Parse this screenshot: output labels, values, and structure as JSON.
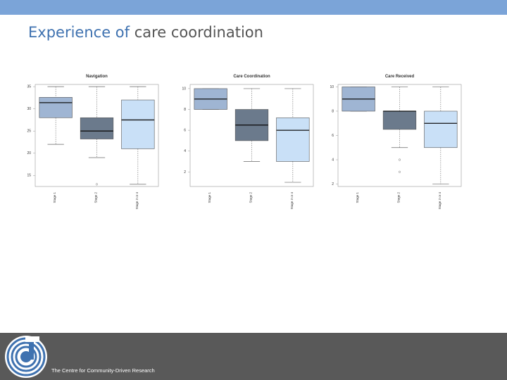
{
  "slide": {
    "title_accent": "Experience of",
    "title_rest": " care coordination",
    "footer_text": "The Centre for Community-Driven Research"
  },
  "colors": {
    "topbar": "#7ba4d8",
    "title_accent": "#3f72b0",
    "title_text": "#555555",
    "footer": "#595959",
    "box_group1": "#9fb5d3",
    "box_group2": "#6b7a8c",
    "box_group3": "#c9e0f7"
  },
  "chart_data": [
    {
      "type": "box",
      "title": "Navigation",
      "categories": [
        "Stage 1",
        "Stage 2",
        "Stage 3 or 4"
      ],
      "ylim": [
        12.5,
        35.5
      ],
      "yticks": [
        15,
        20,
        25,
        30,
        35
      ],
      "boxes": [
        {
          "min": 22,
          "q1": 28,
          "median": 31.4,
          "q3": 32.6,
          "max": 35,
          "outliers": []
        },
        {
          "min": 19,
          "q1": 23.2,
          "median": 25,
          "q3": 28,
          "max": 35,
          "outliers": [
            13
          ]
        },
        {
          "min": 13,
          "q1": 21,
          "median": 27.5,
          "q3": 32,
          "max": 35,
          "outliers": []
        }
      ]
    },
    {
      "type": "box",
      "title": "Care Coordination",
      "categories": [
        "Stage 1",
        "Stage 2",
        "Stage 3 or 4"
      ],
      "ylim": [
        0.6,
        10.4
      ],
      "yticks": [
        2,
        4,
        6,
        8,
        10
      ],
      "boxes": [
        {
          "min": 8,
          "q1": 8,
          "median": 9,
          "q3": 10,
          "max": 10,
          "outliers": []
        },
        {
          "min": 3,
          "q1": 5,
          "median": 6.5,
          "q3": 8,
          "max": 10,
          "outliers": []
        },
        {
          "min": 1,
          "q1": 3,
          "median": 6,
          "q3": 7.2,
          "max": 10,
          "outliers": []
        }
      ]
    },
    {
      "type": "box",
      "title": "Care Received",
      "categories": [
        "Stage 1",
        "Stage 2",
        "Stage 3 or 4"
      ],
      "ylim": [
        1.8,
        10.2
      ],
      "yticks": [
        2,
        4,
        6,
        8,
        10
      ],
      "ytick_labels": [
        "2",
        "4",
        "6",
        "8",
        "10"
      ],
      "boxes": [
        {
          "min": 8,
          "q1": 8,
          "median": 9,
          "q3": 10,
          "max": 10,
          "outliers": []
        },
        {
          "min": 5,
          "q1": 6.5,
          "median": 8,
          "q3": 8,
          "max": 10,
          "outliers": [
            4,
            3
          ]
        },
        {
          "min": 2,
          "q1": 5,
          "median": 7,
          "q3": 8,
          "max": 10,
          "outliers": []
        }
      ]
    }
  ]
}
